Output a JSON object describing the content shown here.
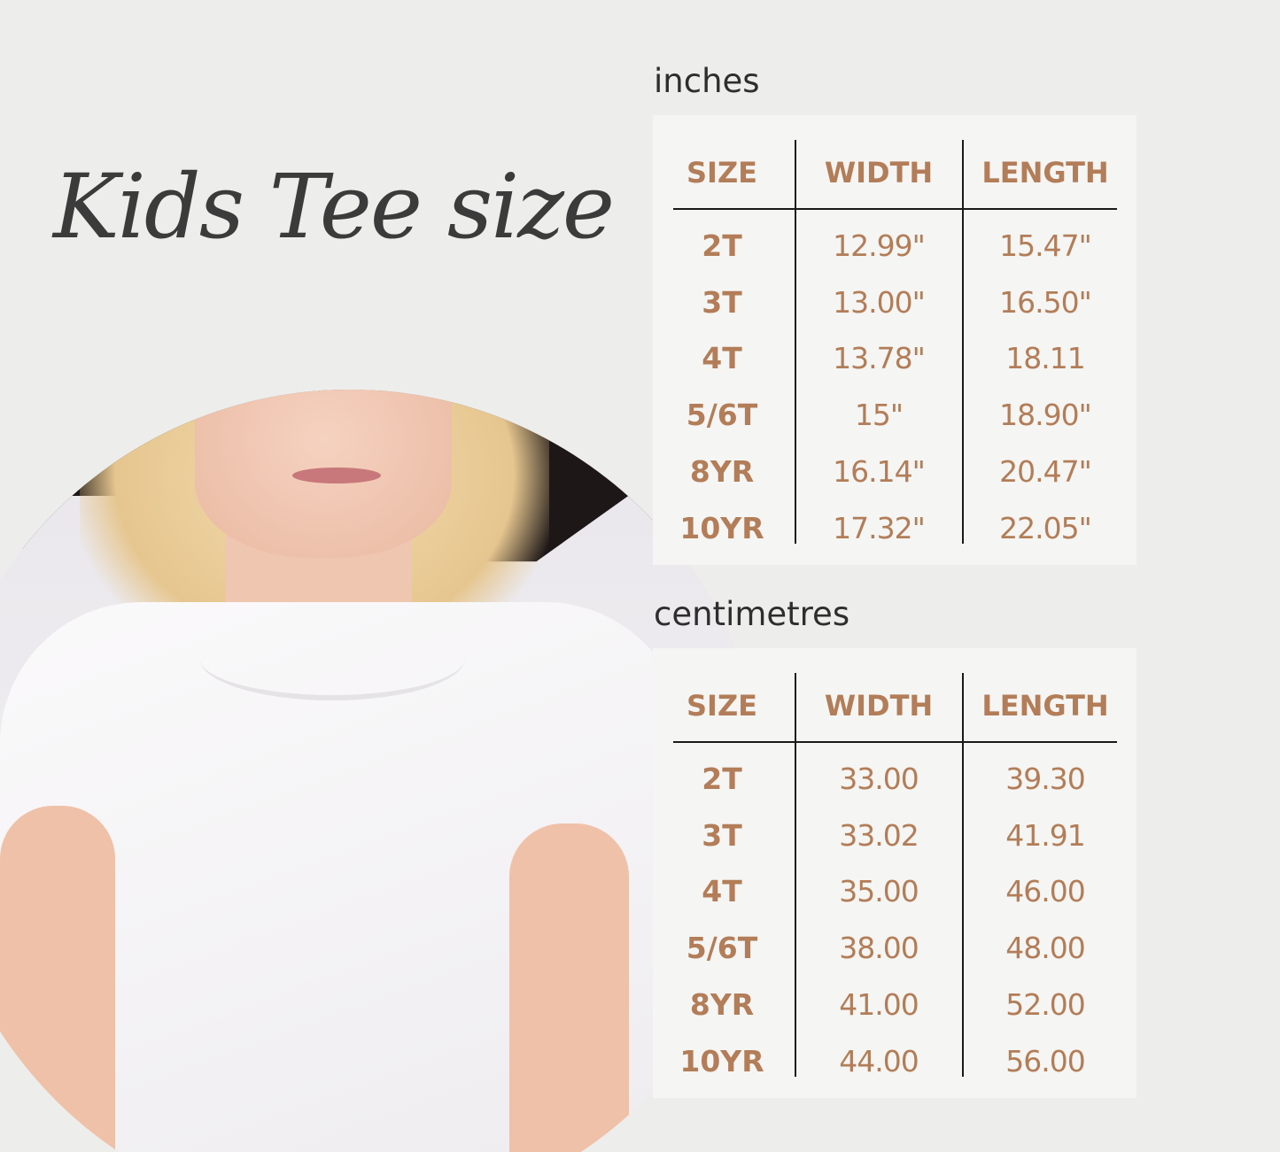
{
  "title": "Kids Tee size",
  "colors": {
    "accent": "#b27d58",
    "background": "#ededeb",
    "panel": "#f5f5f3",
    "text": "#2e2e2e"
  },
  "tables": [
    {
      "unit_label": "inches",
      "headers": [
        "SIZE",
        "WIDTH",
        "LENGTH"
      ],
      "rows": [
        [
          "2T",
          "12.99\"",
          "15.47\""
        ],
        [
          "3T",
          "13.00\"",
          "16.50\""
        ],
        [
          "4T",
          "13.78\"",
          "18.11"
        ],
        [
          "5/6T",
          "15\"",
          "18.90\""
        ],
        [
          "8YR",
          "16.14\"",
          "20.47\""
        ],
        [
          "10YR",
          "17.32\"",
          "22.05\""
        ]
      ]
    },
    {
      "unit_label": "centimetres",
      "headers": [
        "SIZE",
        "WIDTH",
        "LENGTH"
      ],
      "rows": [
        [
          "2T",
          "33.00",
          "39.30"
        ],
        [
          "3T",
          "33.02",
          "41.91"
        ],
        [
          "4T",
          "35.00",
          "46.00"
        ],
        [
          "5/6T",
          "38.00",
          "48.00"
        ],
        [
          "8YR",
          "41.00",
          "52.00"
        ],
        [
          "10YR",
          "44.00",
          "56.00"
        ]
      ]
    }
  ]
}
